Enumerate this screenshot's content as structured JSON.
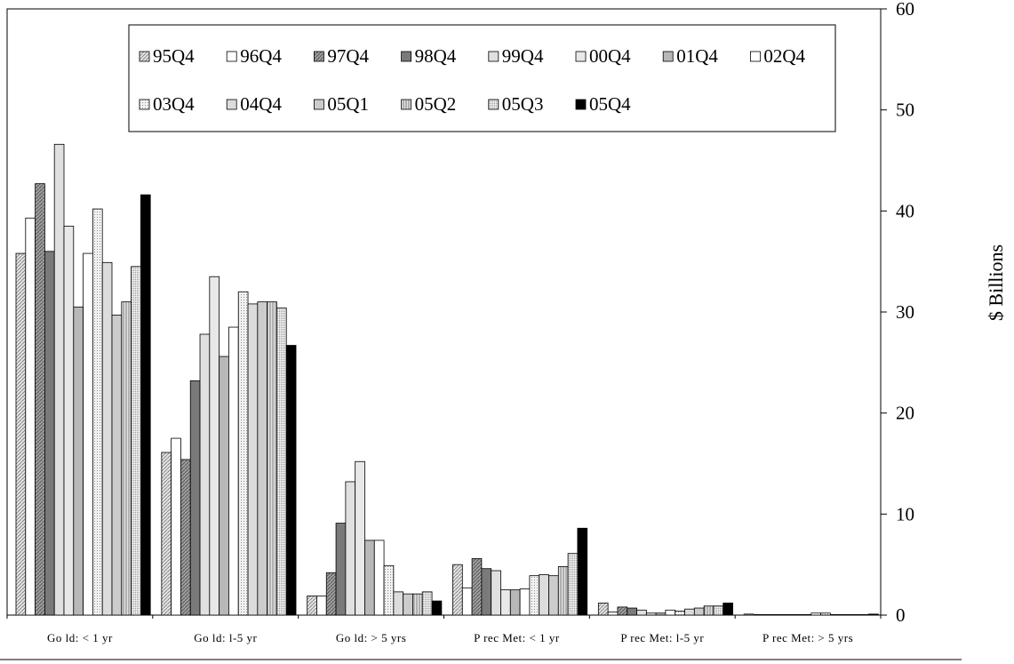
{
  "chart_data": {
    "type": "bar",
    "title": "",
    "xlabel": "",
    "ylabel": "$ Billions",
    "ylim": [
      0,
      60
    ],
    "yticks": [
      "0",
      "10",
      "20",
      "30",
      "40",
      "50",
      "60"
    ],
    "y_axis_side": "right",
    "grid": false,
    "legend_position": "top-center",
    "categories": [
      "Go ld: < 1 yr",
      "Go ld: l-5 yr",
      "Go ld: > 5 yrs",
      "P rec Met: < 1 yr",
      "P rec Met: l-5 yr",
      "P rec Met: > 5 yrs"
    ],
    "series": [
      {
        "name": "95Q4",
        "fill": "#dddddd",
        "pattern": "hatch-fine",
        "values": [
          35.8,
          16.1,
          1.9,
          5.0,
          1.2,
          0.1
        ]
      },
      {
        "name": "96Q4",
        "fill": "#ffffff",
        "pattern": "none",
        "values": [
          39.3,
          17.5,
          1.9,
          2.7,
          0.3,
          0.0
        ]
      },
      {
        "name": "97Q4",
        "fill": "#9a9a9a",
        "pattern": "hatch",
        "values": [
          42.7,
          15.4,
          4.2,
          5.6,
          0.8,
          0.0
        ]
      },
      {
        "name": "98Q4",
        "fill": "#7a7a7a",
        "pattern": "none",
        "values": [
          36.0,
          23.2,
          9.1,
          4.6,
          0.7,
          0.0
        ]
      },
      {
        "name": "99Q4",
        "fill": "#e0e0e0",
        "pattern": "none",
        "values": [
          46.6,
          27.8,
          13.2,
          4.4,
          0.5,
          0.0
        ]
      },
      {
        "name": "00Q4",
        "fill": "#e8e8e8",
        "pattern": "none",
        "values": [
          38.5,
          33.5,
          15.2,
          2.5,
          0.2,
          0.0
        ]
      },
      {
        "name": "01Q4",
        "fill": "#b8b8b8",
        "pattern": "none",
        "values": [
          30.5,
          25.6,
          7.4,
          2.5,
          0.2,
          0.0
        ]
      },
      {
        "name": "02Q4",
        "fill": "#ffffff",
        "pattern": "none",
        "values": [
          35.8,
          28.5,
          7.4,
          2.6,
          0.5,
          0.2
        ]
      },
      {
        "name": "03Q4",
        "fill": "#eeeeee",
        "pattern": "dots",
        "values": [
          40.2,
          32.0,
          4.9,
          3.9,
          0.4,
          0.2
        ]
      },
      {
        "name": "04Q4",
        "fill": "#dcdcdc",
        "pattern": "none",
        "values": [
          34.9,
          30.8,
          2.3,
          4.0,
          0.6,
          0.0
        ]
      },
      {
        "name": "05Q1",
        "fill": "#cccccc",
        "pattern": "none",
        "values": [
          29.7,
          31.0,
          2.1,
          3.9,
          0.7,
          0.0
        ]
      },
      {
        "name": "05Q2",
        "fill": "#d6d6d6",
        "pattern": "vertical",
        "values": [
          31.0,
          31.0,
          2.1,
          4.8,
          0.9,
          0.0
        ]
      },
      {
        "name": "05Q3",
        "fill": "#e6e6e6",
        "pattern": "dots-fine",
        "values": [
          34.5,
          30.4,
          2.3,
          6.1,
          0.9,
          0.0
        ]
      },
      {
        "name": "05Q4",
        "fill": "#000000",
        "pattern": "none",
        "values": [
          41.6,
          26.7,
          1.4,
          8.6,
          1.2,
          0.1
        ]
      }
    ]
  }
}
